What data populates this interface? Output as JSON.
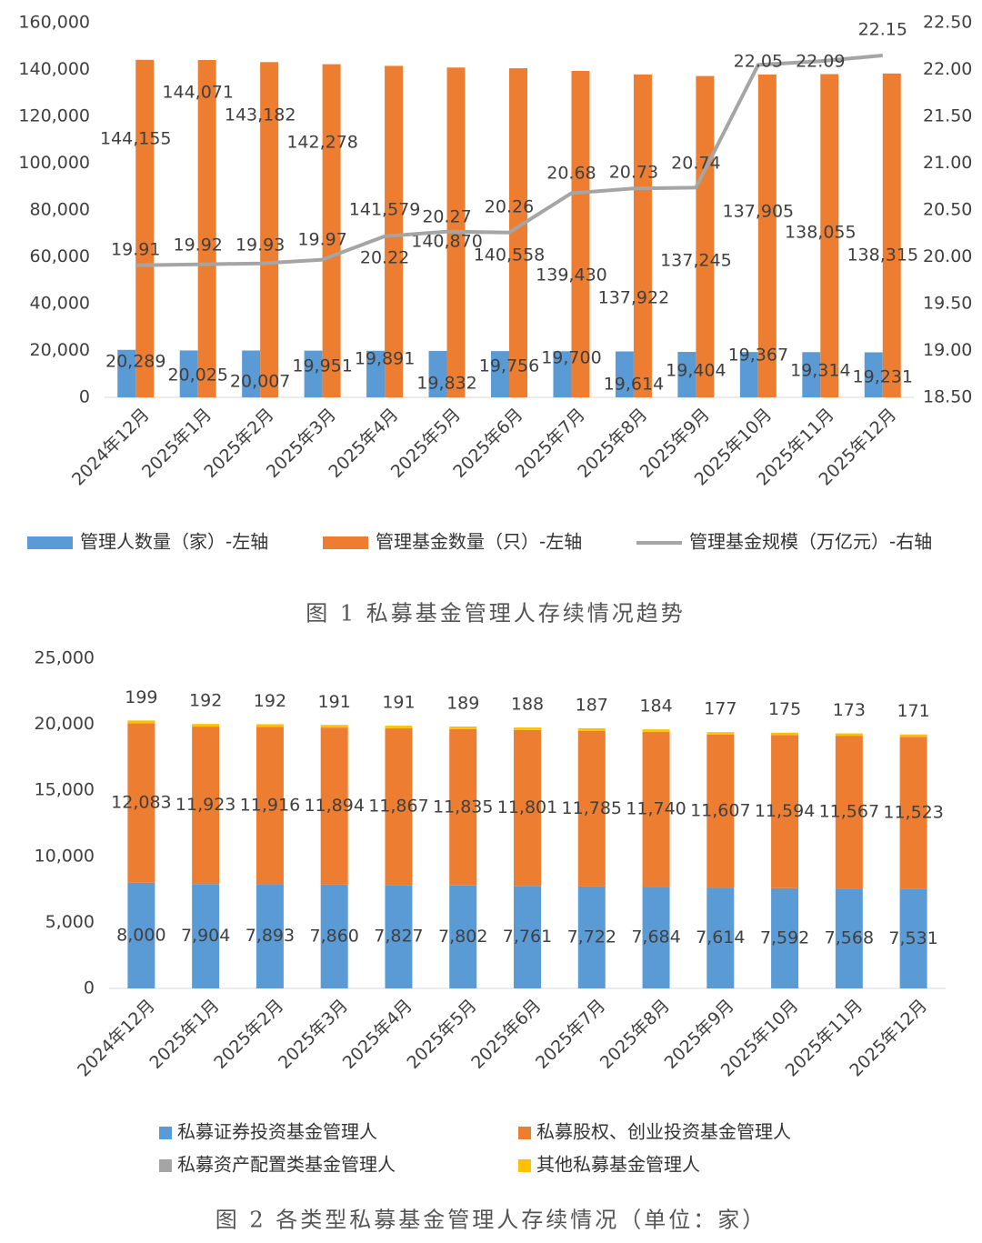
{
  "chart_data": [
    {
      "type": "bar-line",
      "title": "图 1 私募基金管理人存续情况趋势",
      "categories": [
        "2024年12月",
        "2025年1月",
        "2025年2月",
        "2025年3月",
        "2025年4月",
        "2025年5月",
        "2025年6月",
        "2025年7月",
        "2025年8月",
        "2025年9月",
        "2025年10月",
        "2025年11月",
        "2025年12月"
      ],
      "series": [
        {
          "name": "管理人数量（家）-左轴",
          "type": "bar",
          "color": "#5b9bd5",
          "values": [
            20289,
            20025,
            20007,
            19951,
            19891,
            19832,
            19756,
            19700,
            19614,
            19404,
            19367,
            19314,
            19231
          ],
          "value_labels": [
            "20,289",
            "20,025",
            "20,007",
            "19,951",
            "19,891",
            "19,832",
            "19,756",
            "19,700",
            "19,614",
            "19,404",
            "19,367",
            "19,314",
            "19,231"
          ]
        },
        {
          "name": "管理基金数量（只）-左轴",
          "type": "bar",
          "color": "#ed7d31",
          "values": [
            144155,
            144071,
            143182,
            142278,
            141579,
            140870,
            140558,
            139430,
            137922,
            137245,
            137905,
            138055,
            138315
          ],
          "value_labels": [
            "144,155",
            "144,071",
            "143,182",
            "142,278",
            "141,579",
            "140,870",
            "140,558",
            "139,430",
            "137,922",
            "137,245",
            "137,905",
            "138,055",
            "138,315"
          ]
        },
        {
          "name": "管理基金规模（万亿元）-右轴",
          "type": "line",
          "axis": "y2",
          "color": "#a5a5a5",
          "values": [
            19.91,
            19.92,
            19.93,
            19.97,
            20.22,
            20.27,
            20.26,
            20.68,
            20.73,
            20.74,
            22.05,
            22.09,
            22.15
          ]
        }
      ],
      "ylim": [
        0,
        160000
      ],
      "yticks": [
        0,
        {
          "value": 20000,
          "label": "20,000"
        },
        {
          "value": 40000,
          "label": "40,000"
        },
        {
          "value": 60000,
          "label": "60,000"
        },
        {
          "value": 80000,
          "label": "80,000"
        },
        {
          "value": 100000,
          "label": "100,000"
        },
        {
          "value": 120000,
          "label": "120,000"
        },
        {
          "value": 140000,
          "label": "140,000"
        },
        {
          "value": 160000,
          "label": "160,000"
        }
      ],
      "y2lim": [
        18.5,
        22.5
      ],
      "y2ticks": [
        {
          "value": 18.5,
          "label": "18.50"
        },
        {
          "value": 19,
          "label": "19.00"
        },
        {
          "value": 19.5,
          "label": "19.50"
        },
        {
          "value": 20,
          "label": "20.00"
        },
        {
          "value": 20.5,
          "label": "20.50"
        },
        {
          "value": 21,
          "label": "21.00"
        },
        {
          "value": 21.5,
          "label": "21.50"
        },
        {
          "value": 22,
          "label": "22.00"
        },
        {
          "value": 22.5,
          "label": "22.50"
        }
      ],
      "grid": false,
      "legend": "bottom"
    },
    {
      "type": "stacked-bar",
      "title": "图 2 各类型私募基金管理人存续情况（单位：家）",
      "categories": [
        "2024年12月",
        "2025年1月",
        "2025年2月",
        "2025年3月",
        "2025年4月",
        "2025年5月",
        "2025年6月",
        "2025年7月",
        "2025年8月",
        "2025年9月",
        "2025年10月",
        "2025年11月",
        "2025年12月"
      ],
      "series": [
        {
          "name": "私募证券投资基金管理人",
          "color": "#5b9bd5",
          "values": [
            8000,
            7904,
            7893,
            7860,
            7827,
            7802,
            7761,
            7722,
            7684,
            7614,
            7592,
            7568,
            7531
          ],
          "value_labels": [
            "8,000",
            "7,904",
            "7,893",
            "7,860",
            "7,827",
            "7,802",
            "7,761",
            "7,722",
            "7,684",
            "7,614",
            "7,592",
            "7,568",
            "7,531"
          ]
        },
        {
          "name": "私募股权、创业投资基金管理人",
          "color": "#ed7d31",
          "values": [
            12083,
            11923,
            11916,
            11894,
            11867,
            11835,
            11801,
            11785,
            11740,
            11607,
            11594,
            11567,
            11523
          ],
          "value_labels": [
            "12,083",
            "11,923",
            "11,916",
            "11,894",
            "11,867",
            "11,835",
            "11,801",
            "11,785",
            "11,740",
            "11,607",
            "11,594",
            "11,567",
            "11,523"
          ]
        },
        {
          "name": "私募资产配置类基金管理人",
          "color": "#a5a5a5",
          "values": [
            9,
            9,
            9,
            9,
            9,
            9,
            9,
            9,
            9,
            9,
            9,
            9,
            9
          ]
        },
        {
          "name": "其他私募基金管理人",
          "color": "#ffc000",
          "values": [
            199,
            192,
            192,
            191,
            191,
            189,
            188,
            187,
            184,
            177,
            175,
            173,
            171
          ]
        }
      ],
      "ylim": [
        0,
        25000
      ],
      "yticks": [
        0,
        {
          "value": 5000,
          "label": "5,000"
        },
        {
          "value": 10000,
          "label": "10,000"
        },
        {
          "value": 15000,
          "label": "15,000"
        },
        {
          "value": 20000,
          "label": "20,000"
        },
        {
          "value": 25000,
          "label": "25,000"
        }
      ],
      "grid": false,
      "legend": "bottom"
    }
  ]
}
